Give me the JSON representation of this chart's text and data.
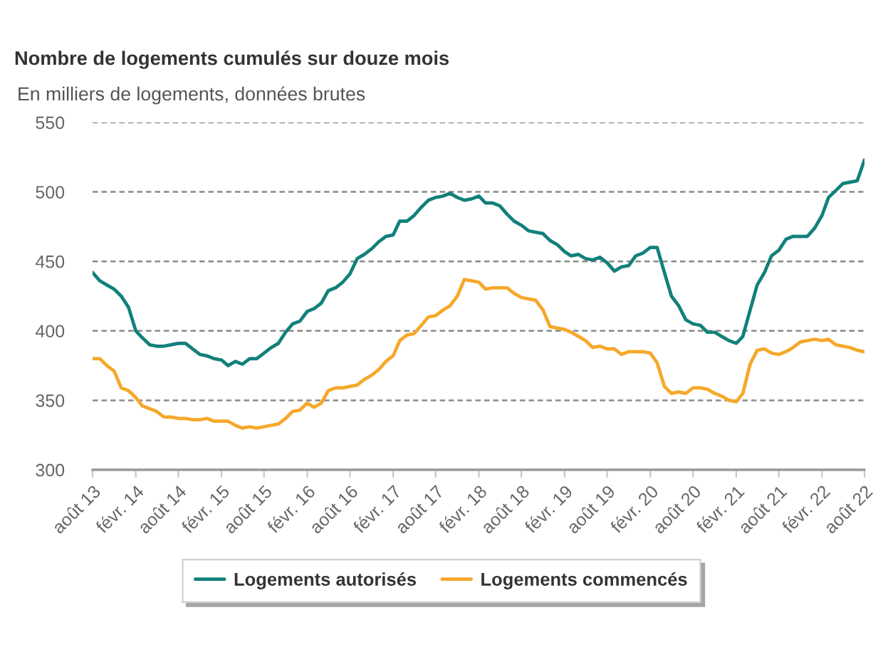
{
  "chart_data": {
    "type": "line",
    "title": "Nombre de logements cumulés sur douze mois",
    "subtitle": "En milliers de logements, données brutes",
    "x": [
      "2013-08",
      "2013-09",
      "2013-10",
      "2013-11",
      "2013-12",
      "2014-01",
      "2014-02",
      "2014-03",
      "2014-04",
      "2014-05",
      "2014-06",
      "2014-07",
      "2014-08",
      "2014-09",
      "2014-10",
      "2014-11",
      "2014-12",
      "2015-01",
      "2015-02",
      "2015-03",
      "2015-04",
      "2015-05",
      "2015-06",
      "2015-07",
      "2015-08",
      "2015-09",
      "2015-10",
      "2015-11",
      "2015-12",
      "2016-01",
      "2016-02",
      "2016-03",
      "2016-04",
      "2016-05",
      "2016-06",
      "2016-07",
      "2016-08",
      "2016-09",
      "2016-10",
      "2016-11",
      "2016-12",
      "2017-01",
      "2017-02",
      "2017-03",
      "2017-04",
      "2017-05",
      "2017-06",
      "2017-07",
      "2017-08",
      "2017-09",
      "2017-10",
      "2017-11",
      "2017-12",
      "2018-01",
      "2018-02",
      "2018-03",
      "2018-04",
      "2018-05",
      "2018-06",
      "2018-07",
      "2018-08",
      "2018-09",
      "2018-10",
      "2018-11",
      "2018-12",
      "2019-01",
      "2019-02",
      "2019-03",
      "2019-04",
      "2019-05",
      "2019-06",
      "2019-07",
      "2019-08",
      "2019-09",
      "2019-10",
      "2019-11",
      "2019-12",
      "2020-01",
      "2020-02",
      "2020-03",
      "2020-04",
      "2020-05",
      "2020-06",
      "2020-07",
      "2020-08",
      "2020-09",
      "2020-10",
      "2020-11",
      "2020-12",
      "2021-01",
      "2021-02",
      "2021-03",
      "2021-04",
      "2021-05",
      "2021-06",
      "2021-07",
      "2021-08",
      "2021-09",
      "2021-10",
      "2021-11",
      "2021-12",
      "2022-01",
      "2022-02",
      "2022-03",
      "2022-04",
      "2022-05",
      "2022-06",
      "2022-07",
      "2022-08"
    ],
    "series": [
      {
        "name": "Logements autorisés",
        "color": "#12807a",
        "values": [
          442,
          436,
          433,
          430,
          425,
          417,
          400,
          395,
          390,
          389,
          389,
          390,
          391,
          391,
          387,
          383,
          382,
          380,
          379,
          375,
          378,
          376,
          380,
          380,
          384,
          388,
          391,
          399,
          405,
          407,
          414,
          416,
          420,
          429,
          431,
          435,
          441,
          452,
          455,
          459,
          464,
          468,
          469,
          479,
          479,
          483,
          489,
          494,
          496,
          497,
          499,
          496,
          494,
          495,
          497,
          492,
          492,
          490,
          484,
          479,
          476,
          472,
          471,
          470,
          465,
          462,
          457,
          454,
          455,
          452,
          451,
          453,
          449,
          443,
          446,
          447,
          454,
          456,
          460,
          460,
          442,
          425,
          418,
          408,
          405,
          404,
          399,
          399,
          396,
          393,
          391,
          396,
          415,
          433,
          442,
          454,
          458,
          466,
          468,
          468,
          468,
          474,
          483,
          496,
          501,
          506,
          507,
          508,
          523
        ]
      },
      {
        "name": "Logements commencés",
        "color": "#f6a82a",
        "values": [
          380,
          380,
          375,
          371,
          359,
          357,
          352,
          346,
          344,
          342,
          338,
          338,
          337,
          337,
          336,
          336,
          337,
          335,
          335,
          335,
          332,
          330,
          331,
          330,
          331,
          332,
          333,
          337,
          342,
          343,
          348,
          345,
          348,
          357,
          359,
          359,
          360,
          361,
          365,
          368,
          372,
          378,
          382,
          393,
          397,
          398,
          404,
          410,
          411,
          415,
          418,
          425,
          437,
          436,
          435,
          430,
          431,
          431,
          431,
          427,
          424,
          423,
          422,
          415,
          403,
          402,
          401,
          399,
          396,
          393,
          388,
          389,
          387,
          387,
          383,
          385,
          385,
          385,
          384,
          377,
          360,
          355,
          356,
          355,
          359,
          359,
          358,
          355,
          353,
          350,
          349,
          355,
          376,
          386,
          387,
          384,
          383,
          385,
          388,
          392,
          393,
          394,
          393,
          394,
          390,
          389,
          388,
          386,
          385
        ]
      }
    ],
    "xlim": [
      "2013-08",
      "2022-08"
    ],
    "xticks": [
      {
        "value": "2013-08",
        "label": "août 13"
      },
      {
        "value": "2014-02",
        "label": "févr. 14"
      },
      {
        "value": "2014-08",
        "label": "août 14"
      },
      {
        "value": "2015-02",
        "label": "févr. 15"
      },
      {
        "value": "2015-08",
        "label": "août 15"
      },
      {
        "value": "2016-02",
        "label": "févr. 16"
      },
      {
        "value": "2016-08",
        "label": "août 16"
      },
      {
        "value": "2017-02",
        "label": "févr. 17"
      },
      {
        "value": "2017-08",
        "label": "août 17"
      },
      {
        "value": "2018-02",
        "label": "févr. 18"
      },
      {
        "value": "2018-08",
        "label": "août 18"
      },
      {
        "value": "2019-02",
        "label": "févr. 19"
      },
      {
        "value": "2019-08",
        "label": "août 19"
      },
      {
        "value": "2020-02",
        "label": "févr. 20"
      },
      {
        "value": "2020-08",
        "label": "août 20"
      },
      {
        "value": "2021-02",
        "label": "févr. 21"
      },
      {
        "value": "2021-08",
        "label": "août 21"
      },
      {
        "value": "2022-02",
        "label": "févr. 22"
      },
      {
        "value": "2022-08",
        "label": "août 22"
      }
    ],
    "ylim": [
      300,
      550
    ],
    "yticks": [
      300,
      350,
      400,
      450,
      500,
      550
    ],
    "grid": "y",
    "legend": "bottom"
  }
}
